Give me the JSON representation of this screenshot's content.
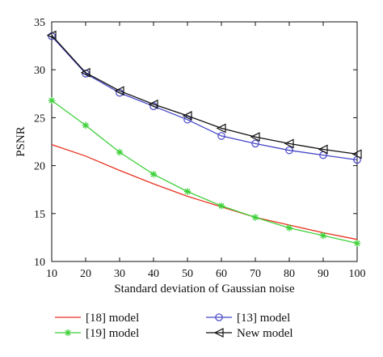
{
  "chart_data": {
    "type": "line",
    "xlabel": "Standard deviation of Gaussian noise",
    "ylabel": "PSNR",
    "xlim": [
      10,
      100
    ],
    "ylim": [
      10,
      35
    ],
    "x_ticks": [
      10,
      20,
      30,
      40,
      50,
      60,
      70,
      80,
      90,
      100
    ],
    "y_ticks": [
      10,
      15,
      20,
      25,
      30,
      35
    ],
    "grid": false,
    "legend_position": "bottom",
    "x": [
      10,
      20,
      30,
      40,
      50,
      60,
      70,
      80,
      90,
      100
    ],
    "series": [
      {
        "name": "[18] model",
        "color": "#e8311f",
        "marker": "none",
        "values": [
          22.2,
          21.0,
          19.5,
          18.1,
          16.8,
          15.7,
          14.6,
          13.8,
          13.0,
          12.3
        ]
      },
      {
        "name": "[19] model",
        "color": "#3fd13a",
        "marker": "star",
        "values": [
          26.8,
          24.2,
          21.4,
          19.1,
          17.3,
          15.8,
          14.6,
          13.5,
          12.7,
          11.9
        ]
      },
      {
        "name": "[13] model",
        "color": "#4646c8",
        "marker": "circle",
        "values": [
          33.5,
          29.6,
          27.6,
          26.2,
          24.8,
          23.1,
          22.3,
          21.6,
          21.1,
          20.6
        ]
      },
      {
        "name": "New model",
        "color": "#111111",
        "marker": "triangle-left",
        "values": [
          33.6,
          29.7,
          27.8,
          26.4,
          25.2,
          23.9,
          23.0,
          22.3,
          21.7,
          21.2
        ]
      }
    ]
  }
}
